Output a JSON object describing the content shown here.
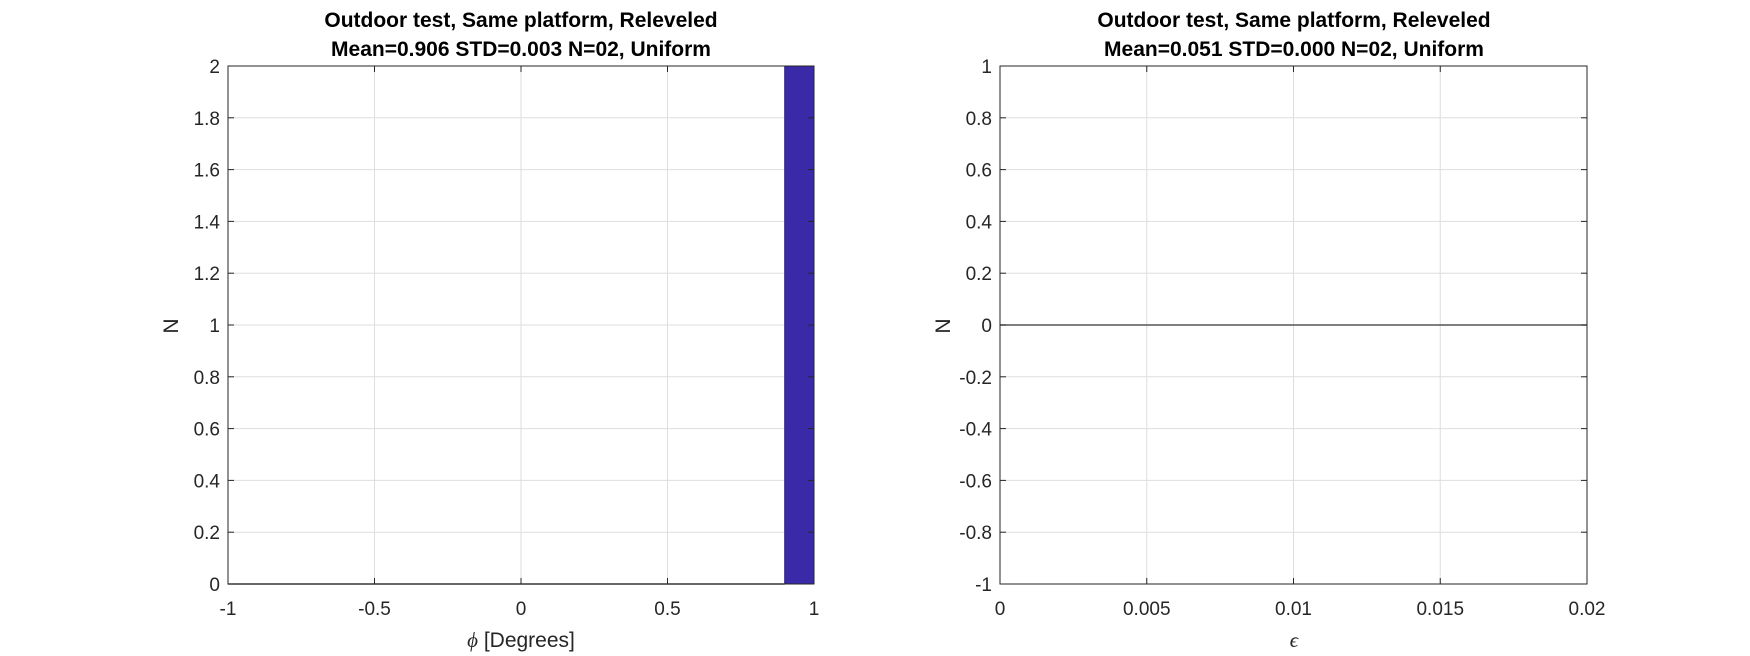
{
  "chart_data": [
    {
      "type": "bar",
      "title": [
        "Outdoor test, Same platform, Releveled",
        "Mean=0.906 STD=0.003 N=02, Uniform"
      ],
      "xlabel_symbol": "ϕ",
      "xlabel": " [Degrees]",
      "ylabel": "N",
      "xlim": [
        -1,
        1
      ],
      "ylim": [
        0,
        2
      ],
      "xticks": [
        -1,
        -0.5,
        0,
        0.5,
        1
      ],
      "yticks": [
        0,
        0.2,
        0.4,
        0.6,
        0.8,
        1,
        1.2,
        1.4,
        1.6,
        1.8,
        2
      ],
      "grid": true,
      "bins": [
        {
          "x0": 0.9,
          "x1": 1.0,
          "value": 2
        }
      ],
      "baseline": {
        "x0": -1,
        "x1": 0.9,
        "value": 0
      },
      "colors": {
        "bar": "#3a2aa8",
        "edge": "#2a1e8a"
      }
    },
    {
      "type": "bar",
      "title": [
        "Outdoor test, Same platform, Releveled",
        "Mean=0.051 STD=0.000 N=02, Uniform"
      ],
      "xlabel_symbol": "ϵ",
      "xlabel": "",
      "ylabel": "N",
      "xlim": [
        0,
        0.02
      ],
      "ylim": [
        -1,
        1
      ],
      "xticks": [
        0,
        0.005,
        0.01,
        0.015,
        0.02
      ],
      "yticks": [
        -1,
        -0.8,
        -0.6,
        -0.4,
        -0.2,
        0,
        0.2,
        0.4,
        0.6,
        0.8,
        1
      ],
      "grid": true,
      "bins": [],
      "baseline": {
        "x0": 0,
        "x1": 0.02,
        "value": 0
      },
      "colors": {
        "bar": "#3a2aa8",
        "edge": "#2a1e8a"
      }
    }
  ]
}
